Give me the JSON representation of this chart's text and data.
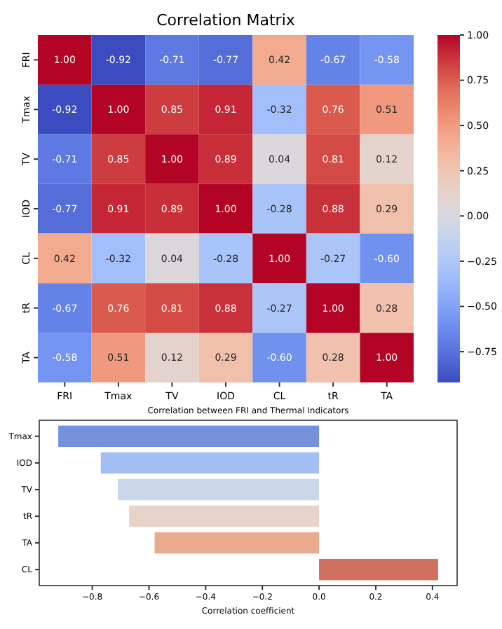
{
  "chart_data": [
    {
      "type": "heatmap",
      "title": "Correlation Matrix",
      "categories": [
        "FRI",
        "Tmax",
        "TV",
        "IOD",
        "CL",
        "tR",
        "TA"
      ],
      "y_categories": [
        "FRI",
        "Tmax",
        "TV",
        "IOD",
        "CL",
        "tR",
        "TA"
      ],
      "cells": [
        [
          1.0,
          -0.92,
          -0.71,
          -0.77,
          0.42,
          -0.67,
          -0.58
        ],
        [
          -0.92,
          1.0,
          0.85,
          0.91,
          -0.32,
          0.76,
          0.51
        ],
        [
          -0.71,
          0.85,
          1.0,
          0.89,
          0.04,
          0.81,
          0.12
        ],
        [
          -0.77,
          0.91,
          0.89,
          1.0,
          -0.28,
          0.88,
          0.29
        ],
        [
          0.42,
          -0.32,
          0.04,
          -0.28,
          1.0,
          -0.27,
          -0.6
        ],
        [
          -0.67,
          0.76,
          0.81,
          0.88,
          -0.27,
          1.0,
          0.28
        ],
        [
          -0.58,
          0.51,
          0.12,
          0.29,
          -0.6,
          0.28,
          1.0
        ]
      ],
      "cell_labels": [
        [
          "1.00",
          "-0.92",
          "-0.71",
          "-0.77",
          "0.42",
          "-0.67",
          "-0.58"
        ],
        [
          "-0.92",
          "1.00",
          "0.85",
          "0.91",
          "-0.32",
          "0.76",
          "0.51"
        ],
        [
          "-0.71",
          "0.85",
          "1.00",
          "0.89",
          "0.04",
          "0.81",
          "0.12"
        ],
        [
          "-0.77",
          "0.91",
          "0.89",
          "1.00",
          "-0.28",
          "0.88",
          "0.29"
        ],
        [
          "0.42",
          "-0.32",
          "0.04",
          "-0.28",
          "1.00",
          "-0.27",
          "-0.60"
        ],
        [
          "-0.67",
          "0.76",
          "0.81",
          "0.88",
          "-0.27",
          "1.00",
          "0.28"
        ],
        [
          "-0.58",
          "0.51",
          "0.12",
          "0.29",
          "-0.60",
          "0.28",
          "1.00"
        ]
      ],
      "clim": [
        -0.92,
        1.0
      ],
      "cticks": [
        {
          "value": -0.75,
          "label": "−0.75"
        },
        {
          "value": -0.5,
          "label": "−0.50"
        },
        {
          "value": -0.25,
          "label": "−0.25"
        },
        {
          "value": 0,
          "label": "0.00"
        },
        {
          "value": 0.25,
          "label": "0.25"
        },
        {
          "value": 0.5,
          "label": "0.50"
        },
        {
          "value": 0.75,
          "label": "0.75"
        },
        {
          "value": 1.0,
          "label": "1.00"
        }
      ]
    },
    {
      "type": "bar",
      "orientation": "horizontal",
      "title": "Correlation between FRI and Thermal Indicators",
      "xlabel": "Correlation coefficient",
      "categories": [
        "Tmax",
        "IOD",
        "TV",
        "tR",
        "TA",
        "CL"
      ],
      "values": [
        -0.92,
        -0.77,
        -0.71,
        -0.67,
        -0.58,
        0.42
      ],
      "colors": [
        "#7590dd",
        "#a3bdf5",
        "#cad6ea",
        "#e8d3c8",
        "#eaaa8f",
        "#d0705e"
      ],
      "xlim": [
        -0.987,
        0.487
      ],
      "xticks": [
        {
          "value": -0.8,
          "label": "−0.8"
        },
        {
          "value": -0.6,
          "label": "−0.6"
        },
        {
          "value": -0.4,
          "label": "−0.4"
        },
        {
          "value": -0.2,
          "label": "−0.2"
        },
        {
          "value": 0,
          "label": "0.0"
        },
        {
          "value": 0.2,
          "label": "0.2"
        },
        {
          "value": 0.4,
          "label": "0.4"
        }
      ],
      "grid": false
    }
  ]
}
